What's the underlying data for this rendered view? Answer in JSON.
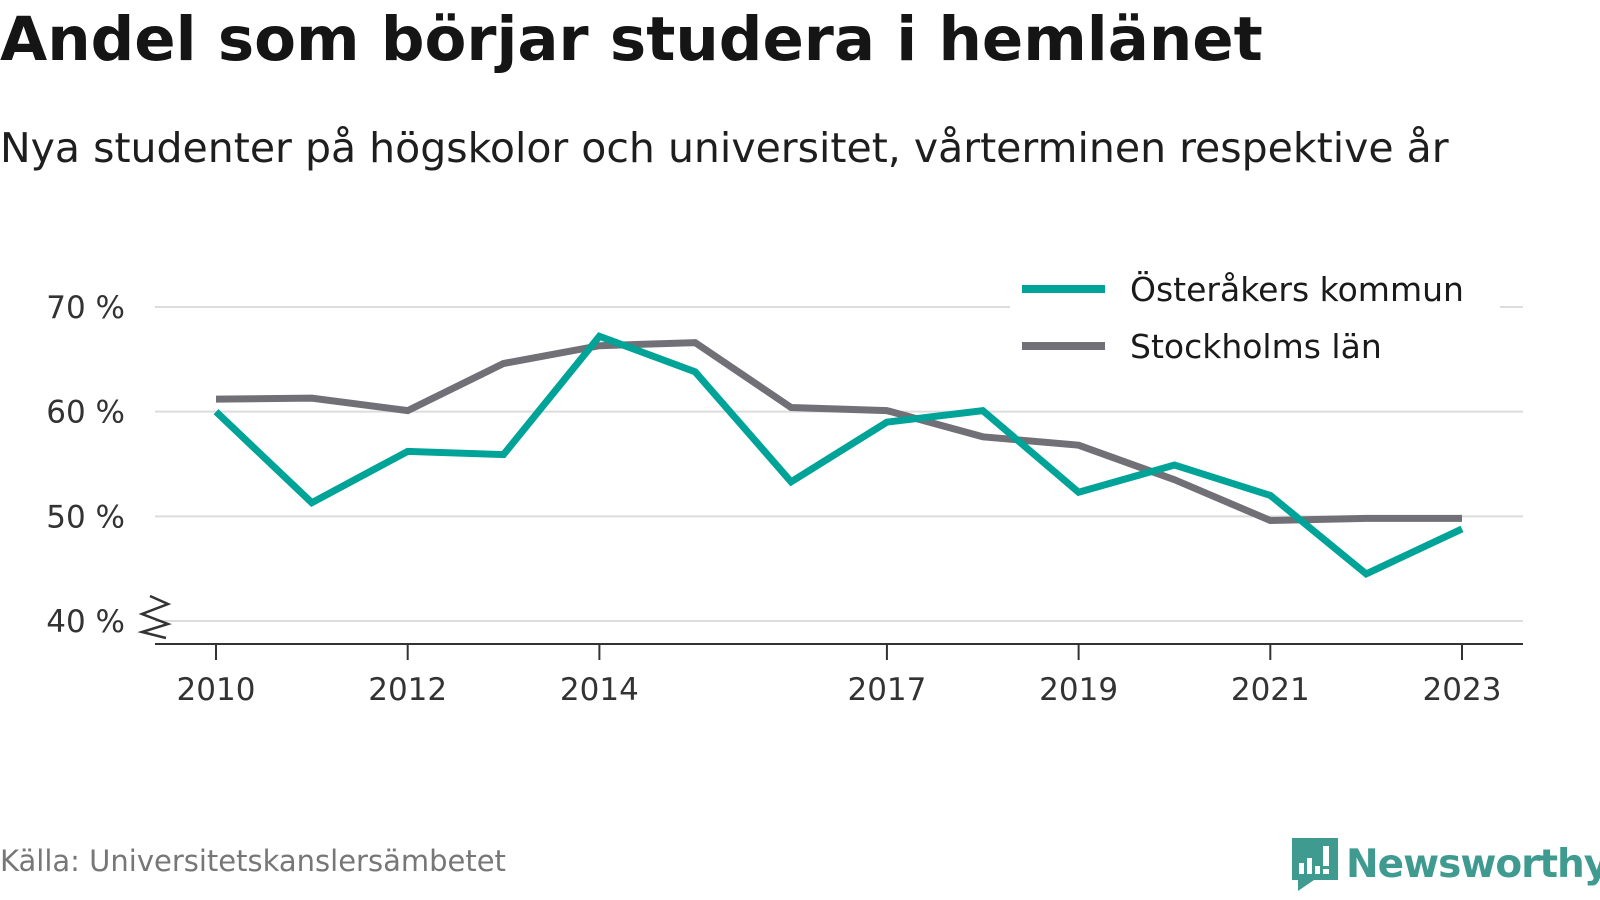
{
  "chart_data": {
    "type": "line",
    "title": "Andel som börjar studera i hemlänet",
    "subtitle": "Nya studenter på högskolor och universitet, vårterminen respektive år",
    "source": "Källa: Universitetskanslersämbetet",
    "x": [
      2010,
      2011,
      2012,
      2013,
      2014,
      2015,
      2016,
      2017,
      2018,
      2019,
      2020,
      2021,
      2022,
      2023
    ],
    "x_tick_labels": [
      "2010",
      "2012",
      "2014",
      "2017",
      "2019",
      "2021",
      "2023"
    ],
    "x_tick_values": [
      2010,
      2012,
      2014,
      2017,
      2019,
      2021,
      2023
    ],
    "y_tick_labels": [
      "40 %",
      "50 %",
      "60 %",
      "70 %"
    ],
    "y_tick_values": [
      40,
      50,
      60,
      70
    ],
    "ylim": [
      40,
      70
    ],
    "xlim": [
      2010,
      2023
    ],
    "grid": true,
    "y_axis_break": true,
    "legend_placement": "top-right",
    "series": [
      {
        "name": "Österåkers kommun",
        "color": "#00a398",
        "values": [
          60.0,
          51.3,
          56.2,
          55.9,
          67.2,
          63.8,
          53.3,
          59.0,
          60.1,
          52.3,
          54.9,
          52.0,
          44.5,
          48.8
        ]
      },
      {
        "name": "Stockholms län",
        "color": "#717077",
        "values": [
          61.2,
          61.3,
          60.1,
          64.6,
          66.3,
          66.6,
          60.4,
          60.1,
          57.6,
          56.8,
          53.5,
          49.6,
          49.8,
          49.8
        ]
      }
    ]
  },
  "branding": {
    "name": "Newsworthy",
    "icon": "newsworthy-logo-icon",
    "color": "#3f9b90"
  }
}
